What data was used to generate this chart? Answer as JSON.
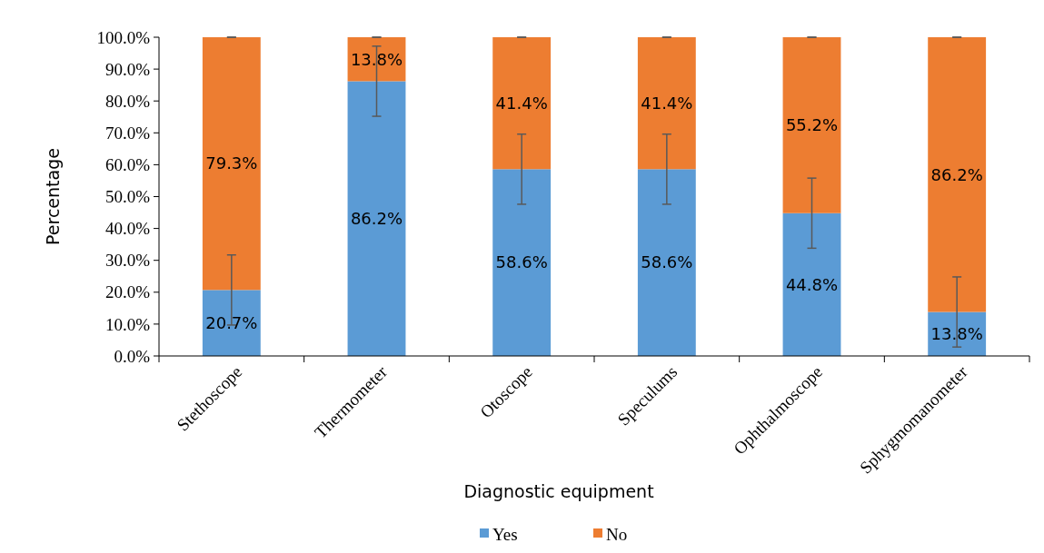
{
  "chart_data": {
    "type": "bar",
    "stacked": true,
    "xlabel": "Diagnostic equipment",
    "ylabel": "Percentage",
    "categories": [
      "Stethoscope",
      "Thermometer",
      "Otoscope",
      "Speculums",
      "Ophthalmoscope",
      "Sphygmomanometer"
    ],
    "series": [
      {
        "name": "Yes",
        "color": "#5b9bd5",
        "values": [
          20.7,
          86.2,
          58.6,
          58.6,
          44.8,
          13.8
        ],
        "errors": [
          11,
          11,
          11,
          11,
          11,
          11
        ],
        "value_labels": [
          "20.7%",
          "86.2%",
          "58.6%",
          "58.6%",
          "44.8%",
          "13.8%"
        ]
      },
      {
        "name": "No",
        "color": "#ed7d31",
        "values": [
          79.3,
          13.8,
          41.4,
          41.4,
          55.2,
          86.2
        ],
        "errors": [
          0,
          0,
          0,
          0,
          0,
          0
        ],
        "value_labels": [
          "79.3%",
          "13.8%",
          "41.4%",
          "41.4%",
          "55.2%",
          "86.2%"
        ]
      }
    ],
    "ylim": [
      0,
      100
    ],
    "yticks": [
      {
        "value": 0,
        "label": "0.0%"
      },
      {
        "value": 10,
        "label": "10.0%"
      },
      {
        "value": 20,
        "label": "20.0%"
      },
      {
        "value": 30,
        "label": "30.0%"
      },
      {
        "value": 40,
        "label": "40.0%"
      },
      {
        "value": 50,
        "label": "50.0%"
      },
      {
        "value": 60,
        "label": "60.0%"
      },
      {
        "value": 70,
        "label": "70.0%"
      },
      {
        "value": 80,
        "label": "80.0%"
      },
      {
        "value": 90,
        "label": "90.0%"
      },
      {
        "value": 100,
        "label": "100.0%"
      }
    ],
    "grid": false,
    "legend": "bottom"
  }
}
